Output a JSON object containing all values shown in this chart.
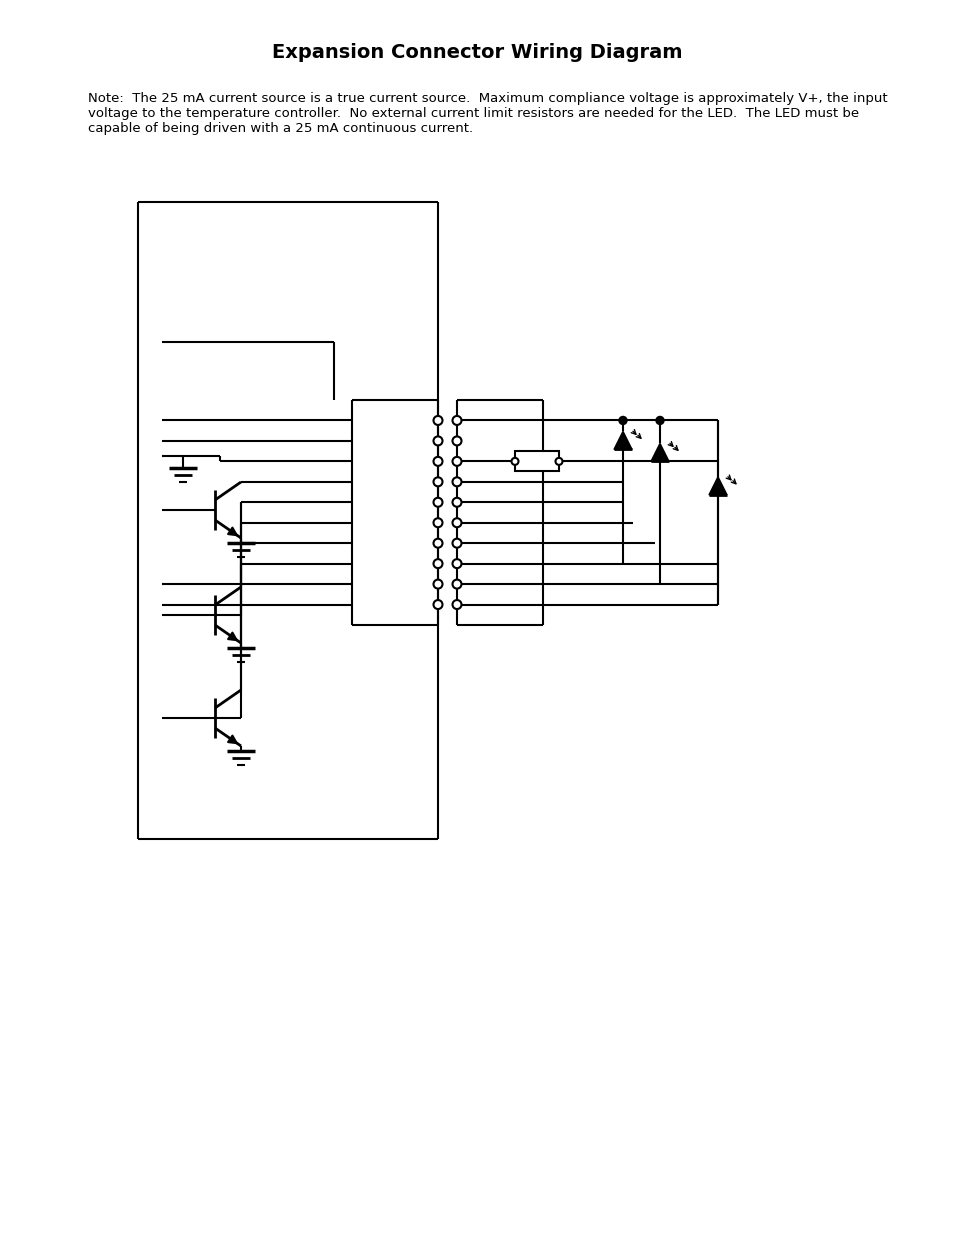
{
  "title": "Expansion Connector Wiring Diagram",
  "note_line1": "Note:  The 25 mA current source is a true current source.  Maximum compliance voltage is approximately V+, the input",
  "note_line2": "voltage to the temperature controller.  No external current limit resistors are needed for the LED.  The LED must be",
  "note_line3": "capable of being driven with a 25 mA continuous current.",
  "bg_color": "#ffffff",
  "line_color": "#000000",
  "title_fontsize": 14,
  "note_fontsize": 9.5,
  "fig_width": 9.54,
  "fig_height": 12.35
}
